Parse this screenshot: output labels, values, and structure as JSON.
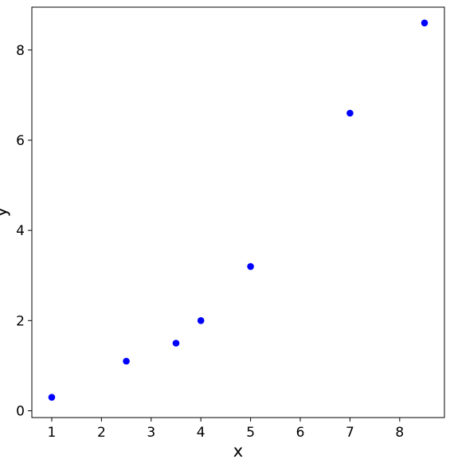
{
  "chart_data": {
    "type": "scatter",
    "title": "",
    "xlabel": "x",
    "ylabel": "y",
    "xlim": [
      0.6,
      8.9
    ],
    "ylim": [
      -0.15,
      8.95
    ],
    "xticks": [
      1,
      2,
      3,
      4,
      5,
      6,
      7,
      8
    ],
    "yticks": [
      0,
      2,
      4,
      6,
      8
    ],
    "grid": false,
    "legend": "none",
    "series": [
      {
        "color": "#0000ff",
        "points": [
          {
            "x": 1,
            "y": 0.3
          },
          {
            "x": 2.5,
            "y": 1.1
          },
          {
            "x": 3.5,
            "y": 1.5
          },
          {
            "x": 4,
            "y": 2.0
          },
          {
            "x": 5,
            "y": 3.2
          },
          {
            "x": 7,
            "y": 6.6
          },
          {
            "x": 8.5,
            "y": 8.6
          }
        ]
      }
    ]
  }
}
